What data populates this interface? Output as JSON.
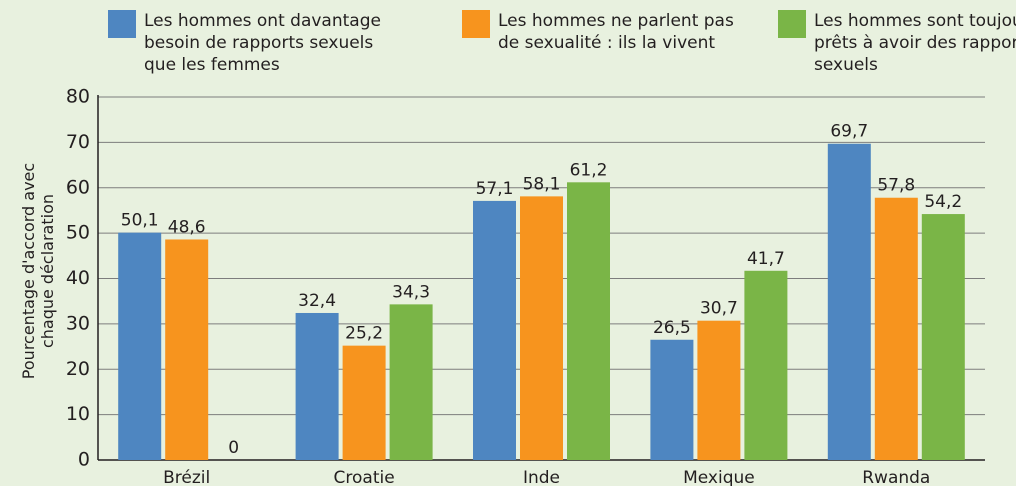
{
  "chart_data": {
    "type": "bar",
    "y_label": "Pourcentage d'accord avec chaque déclaration",
    "categories": [
      "Brézil",
      "Croatie",
      "Inde",
      "Mexique",
      "Rwanda"
    ],
    "series": [
      {
        "name": "Les hommes ont davantage besoin de rapports sexuels que les femmes",
        "color": "#4e86c1",
        "values": [
          50.1,
          32.4,
          57.1,
          26.5,
          69.7
        ],
        "value_labels": [
          "50,1",
          "32,4",
          "57,1",
          "26,5",
          "69,7"
        ]
      },
      {
        "name": "Les hommes ne parlent pas de sexualité : ils la vivent",
        "color": "#f7941e",
        "values": [
          48.6,
          25.2,
          58.1,
          30.7,
          57.8
        ],
        "value_labels": [
          "48,6",
          "25,2",
          "58,1",
          "30,7",
          "57,8"
        ]
      },
      {
        "name": "Les hommes sont toujours prêts à avoir des rapports sexuels",
        "color": "#7ab547",
        "values": [
          0,
          34.3,
          61.2,
          41.7,
          54.2
        ],
        "value_labels": [
          "0",
          "34,3",
          "61,2",
          "41,7",
          "54,2"
        ]
      }
    ],
    "ylim": [
      0,
      80
    ],
    "yticks": [
      0,
      10,
      20,
      30,
      40,
      50,
      60,
      70,
      80
    ],
    "grid": true
  }
}
